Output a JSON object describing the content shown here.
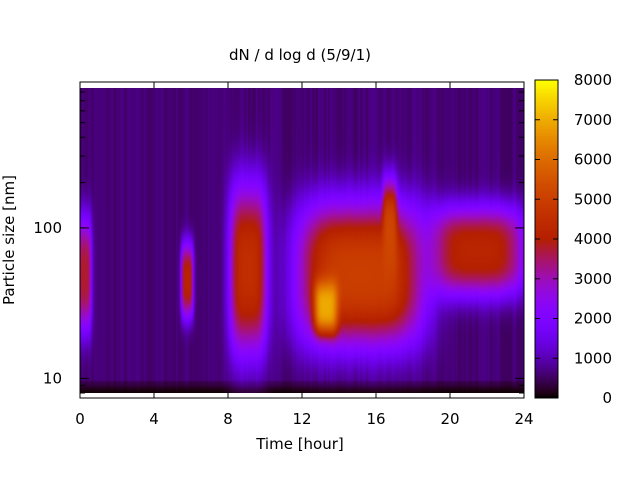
{
  "chart_data": {
    "type": "heatmap",
    "title": "dN / d log d (5/9/1)",
    "xlabel": "Time [hour]",
    "ylabel": "Particle size [nm]",
    "xlim": [
      0,
      24
    ],
    "ylim": [
      8,
      850
    ],
    "y_scale": "log",
    "x_ticks": [
      "0",
      "4",
      "8",
      "12",
      "16",
      "20",
      "24"
    ],
    "y_ticks": [
      "10",
      "100"
    ],
    "colorbar": {
      "range": [
        0,
        8000
      ],
      "ticks": [
        "0",
        "1000",
        "2000",
        "3000",
        "4000",
        "5000",
        "6000",
        "7000",
        "8000"
      ],
      "colormap": "gnuplot-rgbformulae-7-5-15"
    },
    "grid": false,
    "legend": "none",
    "features": [
      {
        "time": [
          0.0,
          0.5
        ],
        "size_nm": [
          20,
          120
        ],
        "level": 3800
      },
      {
        "time": [
          5.6,
          6.0
        ],
        "size_nm": [
          25,
          80
        ],
        "level": 4200
      },
      {
        "time": [
          8.2,
          10.0
        ],
        "size_nm": [
          14,
          200
        ],
        "level": 4500
      },
      {
        "time": [
          11.8,
          18.5
        ],
        "size_nm": [
          16,
          150
        ],
        "level": 5000
      },
      {
        "time": [
          12.8,
          13.8
        ],
        "size_nm": [
          20,
          45
        ],
        "level": 7000
      },
      {
        "time": [
          16.5,
          17.0
        ],
        "size_nm": [
          40,
          200
        ],
        "level": 5200
      },
      {
        "time": [
          19.0,
          24.0
        ],
        "size_nm": [
          35,
          140
        ],
        "level": 4200
      }
    ]
  }
}
